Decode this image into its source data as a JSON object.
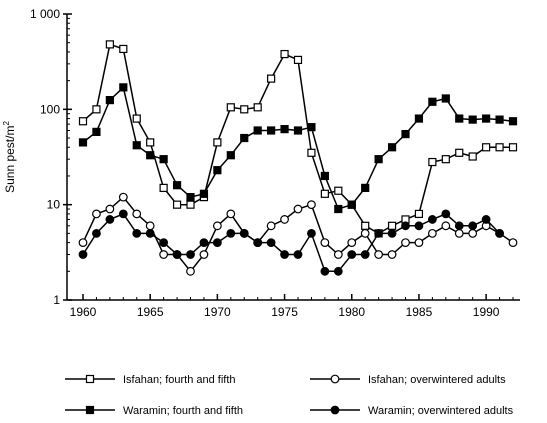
{
  "chart_data": {
    "type": "line",
    "ylabel": "Sunn pest/m",
    "ylabel_superscript": "2",
    "y_scale": "log",
    "ylim": [
      1,
      1000
    ],
    "xlim": [
      1959,
      1993
    ],
    "y_ticks": [
      {
        "value": 1,
        "label": "1"
      },
      {
        "value": 10,
        "label": "10"
      },
      {
        "value": 100,
        "label": "100"
      },
      {
        "value": 1000,
        "label": "1 000"
      }
    ],
    "x_ticks": [
      {
        "value": 1960,
        "label": "1960"
      },
      {
        "value": 1965,
        "label": "1965"
      },
      {
        "value": 1970,
        "label": "1970"
      },
      {
        "value": 1975,
        "label": "1975"
      },
      {
        "value": 1980,
        "label": "1980"
      },
      {
        "value": 1985,
        "label": "1985"
      },
      {
        "value": 1990,
        "label": "1990"
      }
    ],
    "grid": false,
    "legend_position": "bottom",
    "x": [
      1960,
      1961,
      1962,
      1963,
      1964,
      1965,
      1966,
      1967,
      1968,
      1969,
      1970,
      1971,
      1972,
      1973,
      1974,
      1975,
      1976,
      1977,
      1978,
      1979,
      1980,
      1981,
      1982,
      1983,
      1984,
      1985,
      1986,
      1987,
      1988,
      1989,
      1990,
      1991,
      1992
    ],
    "series": [
      {
        "name": "Isfahan; fourth and fifth",
        "marker": "open-square",
        "values": [
          75,
          100,
          480,
          430,
          80,
          45,
          15,
          10,
          10,
          12,
          45,
          105,
          100,
          105,
          210,
          380,
          330,
          35,
          13,
          14,
          10,
          6,
          5,
          6,
          7,
          8,
          28,
          30,
          35,
          32,
          40,
          40,
          40
        ]
      },
      {
        "name": "Waramin; fourth and fifth",
        "marker": "filled-square",
        "values": [
          45,
          58,
          125,
          170,
          42,
          33,
          30,
          16,
          12,
          13,
          23,
          33,
          50,
          60,
          60,
          62,
          60,
          65,
          20,
          9,
          10,
          15,
          30,
          40,
          55,
          80,
          120,
          130,
          80,
          78,
          80,
          78,
          75
        ]
      },
      {
        "name": "Isfahan; overwintered adults",
        "marker": "open-circle",
        "values": [
          4,
          8,
          9,
          12,
          8,
          6,
          3,
          3,
          2,
          3,
          6,
          8,
          5,
          4,
          6,
          7,
          9,
          10,
          4,
          3,
          4,
          5,
          3,
          3,
          4,
          4,
          5,
          6,
          5,
          5,
          6,
          5,
          4
        ]
      },
      {
        "name": "Waramin; overwintered adults",
        "marker": "filled-circle",
        "values": [
          3,
          5,
          7,
          8,
          5,
          5,
          4,
          3,
          3,
          4,
          4,
          5,
          5,
          4,
          4,
          3,
          3,
          5,
          2,
          2,
          3,
          3,
          5,
          5,
          6,
          6,
          7,
          8,
          6,
          6,
          7,
          5,
          null
        ]
      }
    ]
  }
}
